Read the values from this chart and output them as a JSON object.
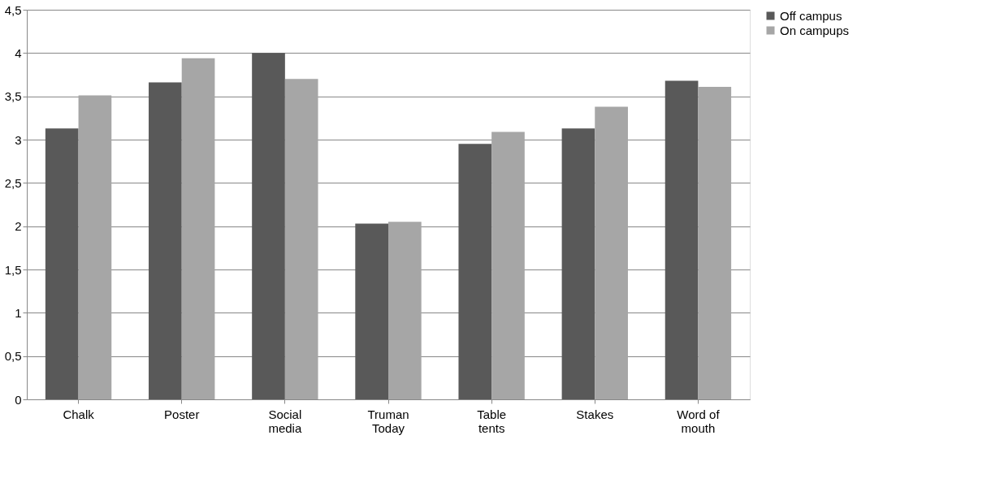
{
  "chart_data": {
    "type": "bar",
    "categories": [
      "Chalk",
      "Poster",
      "Social media",
      "Truman Today",
      "Table tents",
      "Stakes",
      "Word of mouth"
    ],
    "series": [
      {
        "name": "Off campus",
        "color": "#595959",
        "values": [
          3.13,
          3.66,
          4.0,
          2.03,
          2.95,
          3.13,
          3.68
        ]
      },
      {
        "name": "On campups",
        "color": "#a6a6a6",
        "values": [
          3.51,
          3.94,
          3.7,
          2.05,
          3.09,
          3.38,
          3.61
        ]
      }
    ],
    "ylim": [
      0,
      4.5
    ],
    "yticks": [
      0,
      {
        "value": 0.5,
        "label": "0,5"
      },
      1,
      {
        "value": 1.5,
        "label": "1,5"
      },
      2,
      {
        "value": 2.5,
        "label": "2,5"
      },
      3,
      {
        "value": 3.5,
        "label": "3,5"
      },
      4,
      {
        "value": 4.5,
        "label": "4,5"
      }
    ],
    "grid": "y",
    "legend": "right"
  }
}
